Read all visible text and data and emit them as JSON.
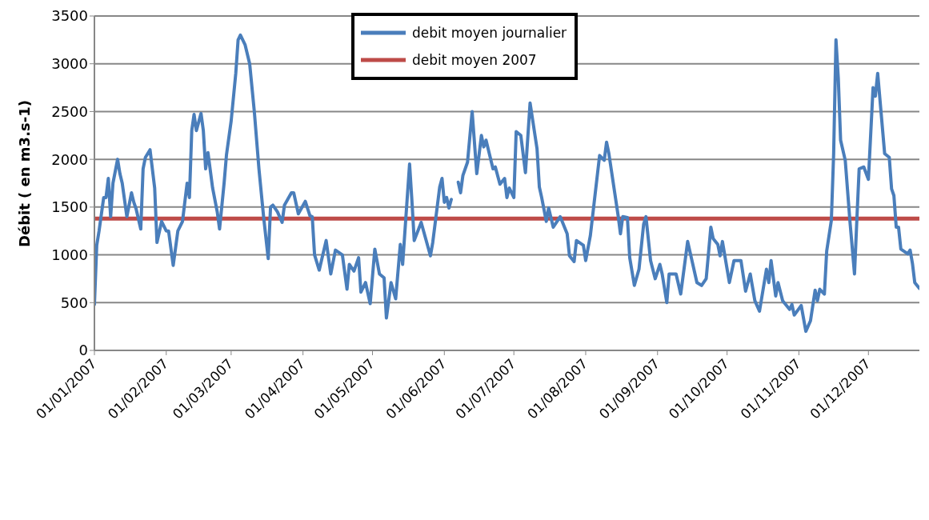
{
  "chart_data": {
    "type": "line",
    "ylabel": "Débit  ( en m3.s-1)",
    "xlim": [
      "2007-01-01",
      "2007-12-23"
    ],
    "xticks": [
      {
        "value": "2007-01-01",
        "label": "01/01/2007"
      },
      {
        "value": "2007-02-01",
        "label": "01/02/2007"
      },
      {
        "value": "2007-03-01",
        "label": "01/03/2007"
      },
      {
        "value": "2007-04-01",
        "label": "01/04/2007"
      },
      {
        "value": "2007-05-01",
        "label": "01/05/2007"
      },
      {
        "value": "2007-06-01",
        "label": "01/06/2007"
      },
      {
        "value": "2007-07-01",
        "label": "01/07/2007"
      },
      {
        "value": "2007-08-01",
        "label": "01/08/2007"
      },
      {
        "value": "2007-09-01",
        "label": "01/09/2007"
      },
      {
        "value": "2007-10-01",
        "label": "01/10/2007"
      },
      {
        "value": "2007-11-01",
        "label": "01/11/2007"
      },
      {
        "value": "2007-12-01",
        "label": "01/12/2007"
      }
    ],
    "ylim": [
      0,
      3500
    ],
    "yticks": [
      0,
      500,
      1000,
      1500,
      2000,
      2500,
      3000,
      3500
    ],
    "grid": "y",
    "legend": "top",
    "marker": "none",
    "line_style": "solid",
    "series": [
      {
        "name": "debit moyen journalier",
        "color": "#4a7ebb",
        "x": [
          "2007-01-01",
          "2007-01-02",
          "2007-01-03",
          "2007-01-05",
          "2007-01-06",
          "2007-01-07",
          "2007-01-08",
          "2007-01-09",
          "2007-01-11",
          "2007-01-12",
          "2007-01-13",
          "2007-01-15",
          "2007-01-17",
          "2007-01-18",
          "2007-01-19",
          "2007-01-21",
          "2007-01-22",
          "2007-01-23",
          "2007-01-25",
          "2007-01-27",
          "2007-01-28",
          "2007-01-30",
          "2007-02-01",
          "2007-02-02",
          "2007-02-04",
          "2007-02-06",
          "2007-02-08",
          "2007-02-10",
          "2007-02-11",
          "2007-02-12",
          "2007-02-13",
          "2007-02-14",
          "2007-02-16",
          "2007-02-17",
          "2007-02-18",
          "2007-02-19",
          "2007-02-21",
          "2007-02-23",
          "2007-02-24",
          "2007-02-26",
          "2007-02-27",
          "2007-03-01",
          "2007-03-03",
          "2007-03-04",
          "2007-03-05",
          "2007-03-07",
          "2007-03-09",
          "2007-03-11",
          "2007-03-13",
          "2007-03-15",
          "2007-03-17",
          "2007-03-18",
          "2007-03-19",
          "2007-03-21",
          "2007-03-23",
          "2007-03-24",
          "2007-03-27",
          "2007-03-28",
          "2007-03-30",
          "2007-04-02",
          "2007-04-04",
          "2007-04-05",
          "2007-04-06",
          "2007-04-08",
          "2007-04-11",
          "2007-04-13",
          "2007-04-15",
          "2007-04-18",
          "2007-04-20",
          "2007-04-21",
          "2007-04-23",
          "2007-04-25",
          "2007-04-26",
          "2007-04-28",
          "2007-04-30",
          "2007-05-02",
          "2007-05-04",
          "2007-05-06",
          "2007-05-07",
          "2007-05-09",
          "2007-05-11",
          "2007-05-13",
          "2007-05-14",
          "2007-05-17",
          "2007-05-18",
          "2007-05-19",
          "2007-05-22",
          "2007-05-26",
          "2007-05-27",
          "2007-05-30",
          "2007-05-31",
          "2007-06-01",
          "2007-06-02",
          "2007-06-03",
          "2007-06-04",
          "2007-06-05",
          "2007-06-07",
          "2007-06-08",
          "2007-06-09",
          "2007-06-11",
          "2007-06-13",
          "2007-06-15",
          "2007-06-17",
          "2007-06-18",
          "2007-06-19",
          "2007-06-22",
          "2007-06-23",
          "2007-06-25",
          "2007-06-27",
          "2007-06-28",
          "2007-06-29",
          "2007-07-01",
          "2007-07-02",
          "2007-07-04",
          "2007-07-06",
          "2007-07-08",
          "2007-07-11",
          "2007-07-12",
          "2007-07-13",
          "2007-07-15",
          "2007-07-16",
          "2007-07-18",
          "2007-07-21",
          "2007-07-24",
          "2007-07-25",
          "2007-07-27",
          "2007-07-28",
          "2007-07-31",
          "2007-08-01",
          "2007-08-03",
          "2007-08-07",
          "2007-08-09",
          "2007-08-10",
          "2007-08-11",
          "2007-08-15",
          "2007-08-16",
          "2007-08-17",
          "2007-08-19",
          "2007-08-20",
          "2007-08-22",
          "2007-08-24",
          "2007-08-26",
          "2007-08-27",
          "2007-08-29",
          "2007-08-31",
          "2007-09-02",
          "2007-09-03",
          "2007-09-05",
          "2007-09-06",
          "2007-09-09",
          "2007-09-11",
          "2007-09-14",
          "2007-09-18",
          "2007-09-20",
          "2007-09-22",
          "2007-09-24",
          "2007-09-25",
          "2007-09-27",
          "2007-09-28",
          "2007-09-29",
          "2007-10-02",
          "2007-10-04",
          "2007-10-07",
          "2007-10-09",
          "2007-10-11",
          "2007-10-13",
          "2007-10-15",
          "2007-10-18",
          "2007-10-19",
          "2007-10-20",
          "2007-10-22",
          "2007-10-23",
          "2007-10-25",
          "2007-10-28",
          "2007-10-29",
          "2007-10-30",
          "2007-11-02",
          "2007-11-04",
          "2007-11-06",
          "2007-11-08",
          "2007-11-09",
          "2007-11-10",
          "2007-11-12",
          "2007-11-13",
          "2007-11-15",
          "2007-11-16",
          "2007-11-17",
          "2007-11-18",
          "2007-11-19",
          "2007-11-21",
          "2007-11-23",
          "2007-11-25",
          "2007-11-26",
          "2007-11-27",
          "2007-11-29",
          "2007-12-01",
          "2007-12-03",
          "2007-12-04",
          "2007-12-05",
          "2007-12-08",
          "2007-12-10",
          "2007-12-11",
          "2007-12-12",
          "2007-12-13",
          "2007-12-14",
          "2007-12-15",
          "2007-12-18",
          "2007-12-19",
          "2007-12-20",
          "2007-12-21",
          "2007-12-23"
        ],
        "values": [
          480,
          1100,
          1250,
          1600,
          1600,
          1800,
          1400,
          1750,
          2000,
          1850,
          1750,
          1400,
          1650,
          1550,
          1480,
          1270,
          1900,
          2020,
          2100,
          1700,
          1130,
          1350,
          1250,
          1250,
          890,
          1250,
          1350,
          1750,
          1600,
          2300,
          2470,
          2300,
          2480,
          2300,
          1900,
          2070,
          1700,
          1450,
          1270,
          1760,
          2050,
          2400,
          2900,
          3250,
          3300,
          3200,
          3000,
          2500,
          1900,
          1400,
          960,
          1500,
          1520,
          1450,
          1340,
          1520,
          1650,
          1650,
          1430,
          1560,
          1410,
          1400,
          1000,
          840,
          1150,
          800,
          1050,
          1000,
          640,
          900,
          830,
          970,
          610,
          710,
          490,
          1060,
          800,
          760,
          340,
          710,
          540,
          1110,
          900,
          1950,
          1570,
          1150,
          1340,
          990,
          1130,
          1710,
          1800,
          1550,
          1600,
          1490,
          1580,
          null,
          1760,
          1650,
          1830,
          1970,
          2500,
          1850,
          2250,
          2130,
          2200,
          1900,
          1920,
          1740,
          1800,
          1600,
          1700,
          1600,
          2290,
          2250,
          1860,
          2590,
          2110,
          1710,
          1600,
          1350,
          1490,
          1290,
          1400,
          1220,
          990,
          930,
          1150,
          1100,
          940,
          1200,
          2040,
          1990,
          2180,
          2060,
          1410,
          1220,
          1400,
          1390,
          970,
          680,
          850,
          1320,
          1400,
          940,
          750,
          900,
          800,
          500,
          800,
          800,
          590,
          1140,
          710,
          680,
          750,
          1290,
          1170,
          1110,
          990,
          1140,
          710,
          940,
          940,
          620,
          800,
          520,
          410,
          850,
          710,
          940,
          570,
          710,
          520,
          430,
          480,
          370,
          470,
          200,
          310,
          630,
          520,
          640,
          590,
          1040,
          1360,
          2060,
          3250,
          2850,
          2200,
          1990,
          1360,
          800,
          1360,
          1900,
          1920,
          1790,
          2750,
          2660,
          2900,
          2060,
          2020,
          1690,
          1620,
          1290,
          1290,
          1060,
          1010,
          1050,
          910,
          710,
          650
        ]
      },
      {
        "name": "debit moyen 2007",
        "color": "#be4b48",
        "x": [
          "2007-01-01",
          "2007-12-23"
        ],
        "values": [
          1380,
          1380
        ]
      }
    ]
  }
}
